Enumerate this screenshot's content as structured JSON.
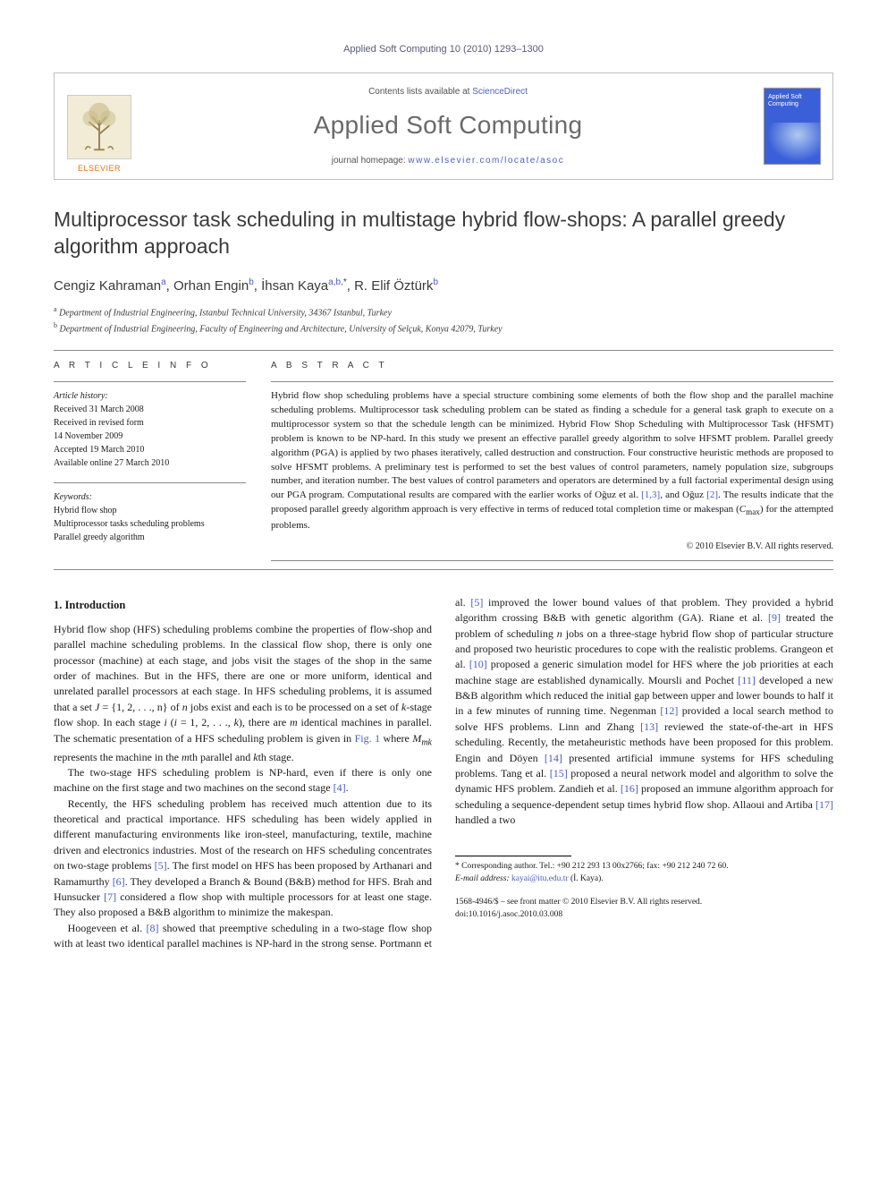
{
  "running_head": "Applied Soft Computing 10 (2010) 1293–1300",
  "masthead": {
    "publisher": "ELSEVIER",
    "contents_prefix": "Contents lists available at ",
    "contents_link": "ScienceDirect",
    "journal": "Applied Soft Computing",
    "homepage_prefix": "journal homepage: ",
    "homepage_url": "www.elsevier.com/locate/asoc",
    "cover_label": "Applied Soft Computing"
  },
  "title": "Multiprocessor task scheduling in multistage hybrid flow-shops: A parallel greedy algorithm approach",
  "authors_html": "Cengiz Kahraman<sup>a</sup>, Orhan Engin<sup>b</sup>, İhsan Kaya<sup>a,b,</sup><sup class=\"star\">*</sup>, R. Elif Öztürk<sup>b</sup>",
  "affiliations": {
    "a": "Department of Industrial Engineering, Istanbul Technical University, 34367 Istanbul, Turkey",
    "b": "Department of Industrial Engineering, Faculty of Engineering and Architecture, University of Selçuk, Konya 42079, Turkey"
  },
  "info_label": "A R T I C L E   I N F O",
  "abs_label": "A B S T R A C T",
  "history_head": "Article history:",
  "history": [
    "Received 31 March 2008",
    "Received in revised form",
    "14 November 2009",
    "Accepted 19 March 2010",
    "Available online 27 March 2010"
  ],
  "keywords_head": "Keywords:",
  "keywords": [
    "Hybrid flow shop",
    "Multiprocessor tasks scheduling problems",
    "Parallel greedy algorithm"
  ],
  "abstract": "Hybrid flow shop scheduling problems have a special structure combining some elements of both the flow shop and the parallel machine scheduling problems. Multiprocessor task scheduling problem can be stated as finding a schedule for a general task graph to execute on a multiprocessor system so that the schedule length can be minimized. Hybrid Flow Shop Scheduling with Multiprocessor Task (HFSMT) problem is known to be NP-hard. In this study we present an effective parallel greedy algorithm to solve HFSMT problem. Parallel greedy algorithm (PGA) is applied by two phases iteratively, called destruction and construction. Four constructive heuristic methods are proposed to solve HFSMT problems. A preliminary test is performed to set the best values of control parameters, namely population size, subgroups number, and iteration number. The best values of control parameters and operators are determined by a full factorial experimental design using our PGA program. Computational results are compared with the earlier works of Oğuz et al. [1,3], and Oğuz [2]. The results indicate that the proposed parallel greedy algorithm approach is very effective in terms of reduced total completion time or makespan (Cmax) for the attempted problems.",
  "copyright": "© 2010 Elsevier B.V. All rights reserved.",
  "section1_heading": "1.  Introduction",
  "body_paragraphs": [
    "Hybrid flow shop (HFS) scheduling problems combine the properties of flow-shop and parallel machine scheduling problems. In the classical flow shop, there is only one processor (machine) at each stage, and jobs visit the stages of the shop in the same order of machines. But in the HFS, there are one or more uniform, identical and unrelated parallel processors at each stage. In HFS scheduling problems, it is assumed that a set J = {1, 2, . . ., n} of n jobs exist and each is to be processed on a set of k-stage flow shop. In each stage i (i = 1, 2, . . ., k), there are m identical machines in parallel. The schematic presentation of a HFS scheduling problem is given in Fig. 1 where Mmk represents the machine in the mth parallel and kth stage.",
    "The two-stage HFS scheduling problem is NP-hard, even if there is only one machine on the first stage and two machines on the second stage [4].",
    "Recently, the HFS scheduling problem has received much attention due to its theoretical and practical importance. HFS scheduling has been widely applied in different manufacturing environments like iron-steel, manufacturing, textile, machine driven and electronics industries. Most of the research on HFS scheduling concentrates on two-stage problems [5]. The first model on HFS has been proposed by Arthanari and Ramamurthy [6]. They developed a Branch & Bound (B&B) method for HFS. Brah and Hunsucker [7] considered a flow shop with multiple processors for at least one stage. They also proposed a B&B algorithm to minimize the makespan.",
    "Hoogeveen et al. [8] showed that preemptive scheduling in a two-stage flow shop with at least two identical parallel machines is NP-hard in the strong sense. Portmann et al. [5] improved the lower bound values of that problem. They provided a hybrid algorithm crossing B&B with genetic algorithm (GA). Riane et al. [9] treated the problem of scheduling n jobs on a three-stage hybrid flow shop of particular structure and proposed two heuristic procedures to cope with the realistic problems. Grangeon et al. [10] proposed a generic simulation model for HFS where the job priorities at each machine stage are established dynamically. Moursli and Pochet [11] developed a new B&B algorithm which reduced the initial gap between upper and lower bounds to half it in a few minutes of running time. Negenman [12] provided a local search method to solve HFS problems. Linn and Zhang [13] reviewed the state-of-the-art in HFS scheduling. Recently, the metaheuristic methods have been proposed for this problem. Engin and Döyen [14] presented artificial immune systems for HFS scheduling problems. Tang et al. [15] proposed a neural network model and algorithm to solve the dynamic HFS problem. Zandieh et al. [16] proposed an immune algorithm approach for scheduling a sequence-dependent setup times hybrid flow shop. Allaoui and Artiba [17] handled a two"
  ],
  "footnote": {
    "corr": "* Corresponding author. Tel.: +90 212 293 13 00x2766; fax: +90 212 240 72 60.",
    "email_label": "E-mail address: ",
    "email": "kayai@itu.edu.tr",
    "email_whose": " (İ. Kaya)."
  },
  "doi": {
    "line1": "1568-4946/$ – see front matter © 2010 Elsevier B.V. All rights reserved.",
    "line2": "doi:10.1016/j.asoc.2010.03.008"
  },
  "colors": {
    "link": "#4a5ac0",
    "publisher": "#e8720c",
    "text": "#1a1a1a",
    "muted": "#6a6a6a",
    "cover_bg": "#3a5fd8"
  }
}
